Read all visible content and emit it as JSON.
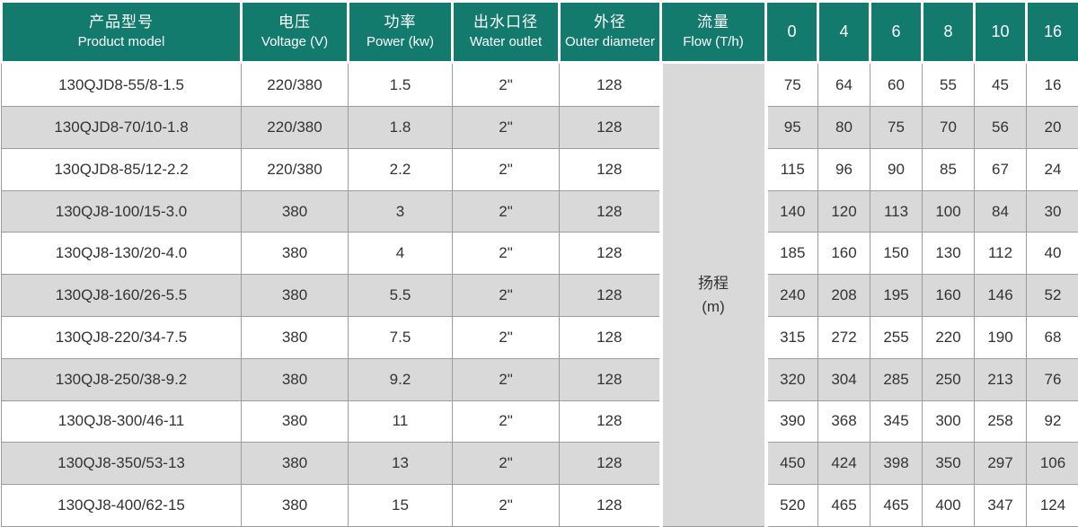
{
  "header": {
    "columns": [
      {
        "zh": "产品型号",
        "en": "Product model"
      },
      {
        "zh": "电压",
        "en": "Voltage (V)"
      },
      {
        "zh": "功率",
        "en": "Power (kw)"
      },
      {
        "zh": "出水口径",
        "en": "Water outlet"
      },
      {
        "zh": "外径",
        "en": "Outer diameter"
      },
      {
        "zh": "流量",
        "en": "Flow (T/h)"
      }
    ],
    "flow_values": [
      "0",
      "4",
      "6",
      "8",
      "10",
      "16"
    ]
  },
  "head_column": {
    "zh": "扬程",
    "unit": "(m)"
  },
  "rows": [
    {
      "model": "130QJD8-55/8-1.5",
      "voltage": "220/380",
      "power": "1.5",
      "outlet": "2\"",
      "diameter": "128",
      "head": [
        "75",
        "64",
        "60",
        "55",
        "45",
        "16"
      ]
    },
    {
      "model": "130QJD8-70/10-1.8",
      "voltage": "220/380",
      "power": "1.8",
      "outlet": "2\"",
      "diameter": "128",
      "head": [
        "95",
        "80",
        "75",
        "70",
        "56",
        "20"
      ]
    },
    {
      "model": "130QJD8-85/12-2.2",
      "voltage": "220/380",
      "power": "2.2",
      "outlet": "2\"",
      "diameter": "128",
      "head": [
        "115",
        "96",
        "90",
        "85",
        "67",
        "24"
      ]
    },
    {
      "model": "130QJ8-100/15-3.0",
      "voltage": "380",
      "power": "3",
      "outlet": "2\"",
      "diameter": "128",
      "head": [
        "140",
        "120",
        "113",
        "100",
        "84",
        "30"
      ]
    },
    {
      "model": "130QJ8-130/20-4.0",
      "voltage": "380",
      "power": "4",
      "outlet": "2\"",
      "diameter": "128",
      "head": [
        "185",
        "160",
        "150",
        "130",
        "112",
        "40"
      ]
    },
    {
      "model": "130QJ8-160/26-5.5",
      "voltage": "380",
      "power": "5.5",
      "outlet": "2\"",
      "diameter": "128",
      "head": [
        "240",
        "208",
        "195",
        "160",
        "146",
        "52"
      ]
    },
    {
      "model": "130QJ8-220/34-7.5",
      "voltage": "380",
      "power": "7.5",
      "outlet": "2\"",
      "diameter": "128",
      "head": [
        "315",
        "272",
        "255",
        "220",
        "190",
        "68"
      ]
    },
    {
      "model": "130QJ8-250/38-9.2",
      "voltage": "380",
      "power": "9.2",
      "outlet": "2\"",
      "diameter": "128",
      "head": [
        "320",
        "304",
        "285",
        "250",
        "213",
        "76"
      ]
    },
    {
      "model": "130QJ8-300/46-11",
      "voltage": "380",
      "power": "11",
      "outlet": "2\"",
      "diameter": "128",
      "head": [
        "390",
        "368",
        "345",
        "300",
        "258",
        "92"
      ]
    },
    {
      "model": "130QJ8-350/53-13",
      "voltage": "380",
      "power": "13",
      "outlet": "2\"",
      "diameter": "128",
      "head": [
        "450",
        "424",
        "398",
        "350",
        "297",
        "106"
      ]
    },
    {
      "model": "130QJ8-400/62-15",
      "voltage": "380",
      "power": "15",
      "outlet": "2\"",
      "diameter": "128",
      "head": [
        "520",
        "465",
        "465",
        "400",
        "347",
        "124"
      ]
    }
  ],
  "colors": {
    "header_bg": "#137a6e",
    "header_text": "#ffffff",
    "stripe_bg": "#d9d9d9",
    "border_gray": "#9c9c9c",
    "body_text": "#333333"
  }
}
